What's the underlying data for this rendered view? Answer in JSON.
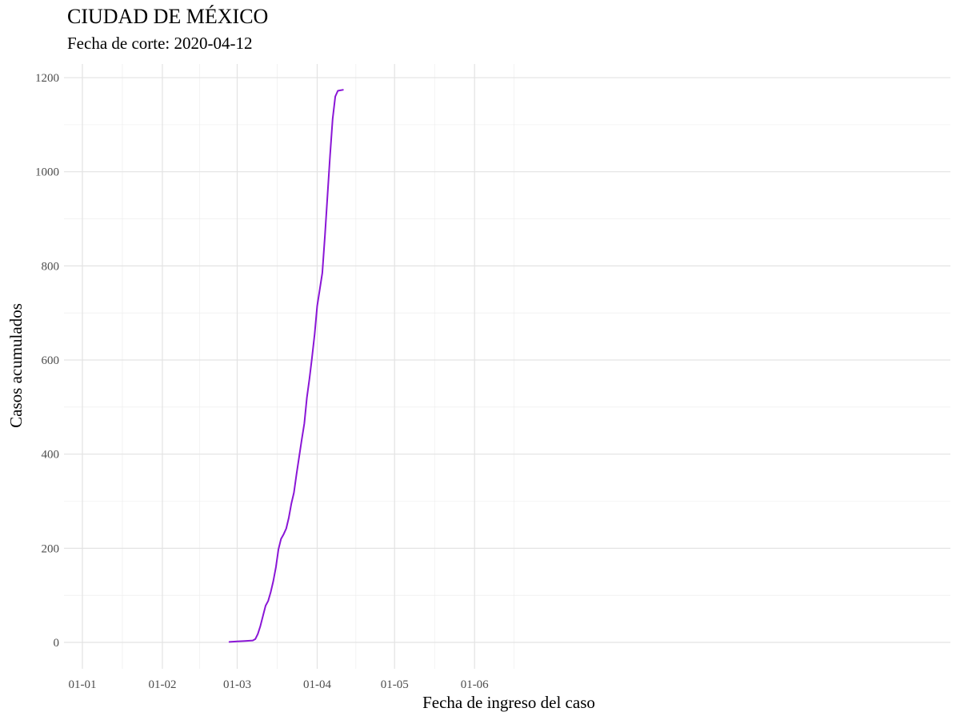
{
  "chart_data": {
    "type": "line",
    "title": "CIUDAD DE MÉXICO",
    "subtitle": "Fecha de corte: 2020-04-12",
    "xlabel": "Fecha de ingreso del caso",
    "ylabel": "Casos acumulados",
    "xlim": [
      "2020-01-01",
      "2020-06-20"
    ],
    "ylim": [
      0,
      1200
    ],
    "x_ticks": [
      "2020-01-01",
      "2020-02-01",
      "2020-03-01",
      "2020-04-01",
      "2020-05-01",
      "2020-06-01"
    ],
    "x_tick_labels": [
      "01-01",
      "01-02",
      "01-03",
      "01-04",
      "01-05",
      "01-06"
    ],
    "y_ticks": [
      0,
      200,
      400,
      600,
      800,
      1000,
      1200
    ],
    "y_tick_labels": [
      "0",
      "200",
      "400",
      "600",
      "800",
      "1000",
      "1200"
    ],
    "grid": true,
    "legend": "none",
    "line_color": "#8a16d6",
    "series": [
      {
        "x": [
          "2020-02-27",
          "2020-03-01",
          "2020-03-04",
          "2020-03-07",
          "2020-03-08",
          "2020-03-09",
          "2020-03-10",
          "2020-03-11",
          "2020-03-12",
          "2020-03-13",
          "2020-03-14",
          "2020-03-15",
          "2020-03-16",
          "2020-03-17",
          "2020-03-18",
          "2020-03-19",
          "2020-03-20",
          "2020-03-21",
          "2020-03-22",
          "2020-03-23",
          "2020-03-24",
          "2020-03-25",
          "2020-03-26",
          "2020-03-27",
          "2020-03-28",
          "2020-03-29",
          "2020-03-30",
          "2020-03-31",
          "2020-04-01",
          "2020-04-02",
          "2020-04-03",
          "2020-04-04",
          "2020-04-05",
          "2020-04-06",
          "2020-04-07",
          "2020-04-08",
          "2020-04-09",
          "2020-04-10",
          "2020-04-11"
        ],
        "values": [
          1,
          2,
          3,
          4,
          7,
          18,
          35,
          57,
          78,
          88,
          107,
          130,
          160,
          198,
          220,
          230,
          242,
          265,
          295,
          318,
          358,
          394,
          430,
          465,
          520,
          560,
          605,
          655,
          715,
          750,
          785,
          865,
          950,
          1035,
          1112,
          1160,
          1172,
          1173,
          1174
        ]
      }
    ]
  }
}
